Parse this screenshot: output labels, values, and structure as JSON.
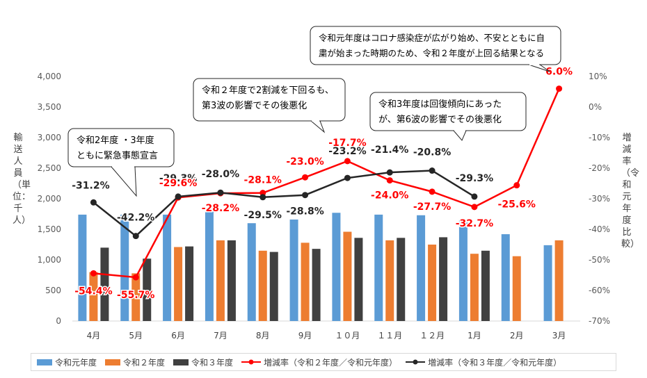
{
  "chart_data": {
    "type": "bar",
    "categories": [
      "4月",
      "5月",
      "6月",
      "7月",
      "8月",
      "9月",
      "１０月",
      "１１月",
      "１２月",
      "1月",
      "2月",
      "3月"
    ],
    "series": [
      {
        "name": "令和元年度",
        "type": "bar",
        "axis": "left",
        "color": "#5B9BD5",
        "values": [
          1740,
          1740,
          1740,
          1790,
          1600,
          1660,
          1770,
          1740,
          1730,
          1650,
          1420,
          1240
        ]
      },
      {
        "name": "令和２年度",
        "type": "bar",
        "axis": "left",
        "color": "#ED7D31",
        "values": [
          800,
          780,
          1210,
          1320,
          1150,
          1280,
          1460,
          1320,
          1250,
          1100,
          1060,
          1320
        ]
      },
      {
        "name": "令和３年度",
        "type": "bar",
        "axis": "left",
        "color": "#404040",
        "values": [
          1200,
          1020,
          1220,
          1320,
          1130,
          1180,
          1360,
          1360,
          1370,
          1150,
          null,
          null
        ]
      },
      {
        "name": "増減率（令和２年度／令和元年度）",
        "type": "line",
        "axis": "right",
        "color": "#FF0000",
        "values": [
          -54.4,
          -55.7,
          -29.6,
          -28.2,
          -28.1,
          -23.0,
          -17.7,
          -24.0,
          -27.7,
          -32.7,
          -25.6,
          6.0
        ],
        "labels": [
          "-54.4%",
          "-55.7%",
          "-29.6%",
          "-28.2%",
          "-28.1%",
          "-23.0%",
          "-17.7%",
          "-24.0%",
          "-27.7%",
          "-32.7%",
          "-25.6%",
          "6.0%"
        ]
      },
      {
        "name": "増減率（令和３年度／令和元年度）",
        "type": "line",
        "axis": "right",
        "color": "#262626",
        "values": [
          -31.2,
          -42.2,
          -29.3,
          -28.0,
          -29.5,
          -28.8,
          -23.2,
          -21.4,
          -20.8,
          -29.3,
          null,
          null
        ],
        "labels": [
          "-31.2%",
          "-42.2%",
          "-29.3%",
          "-28.0%",
          "-29.5%",
          "-28.8%",
          "-23.2%",
          "-21.4%",
          "-20.8%",
          "-29.3%",
          null,
          null
        ]
      }
    ],
    "y_left": {
      "ylim": [
        0,
        4000
      ],
      "ticks": [
        "0",
        "500",
        "1,000",
        "1,500",
        "2,000",
        "2,500",
        "3,000",
        "3,500",
        "4,000"
      ],
      "label": "輸送人員（単位：千人）"
    },
    "y_right": {
      "ylim": [
        -70,
        10
      ],
      "ticks": [
        "-70%",
        "-60%",
        "-50%",
        "-40%",
        "-30%",
        "-20%",
        "-10%",
        "0%",
        "10%"
      ],
      "label": "増減率（令和元年度比較）"
    },
    "grid": false,
    "legend_position": "bottom",
    "callouts": [
      {
        "id": "c1",
        "text": [
          "令和2年度 ・3年度",
          "ともに緊急事態宣言"
        ]
      },
      {
        "id": "c2",
        "text": [
          "令和２年度で2割減を下回るも、",
          "第3波の影響でその後悪化"
        ]
      },
      {
        "id": "c3",
        "text": [
          "令和3年度は回復傾向にあった",
          "が、第6波の影響でその後悪化"
        ]
      },
      {
        "id": "c4",
        "text": [
          "令和元年度はコロナ感染症が広がり始め、不安とともに自",
          "粛が始まった時期のため、令和２年度が上回る結果となる"
        ]
      }
    ]
  }
}
